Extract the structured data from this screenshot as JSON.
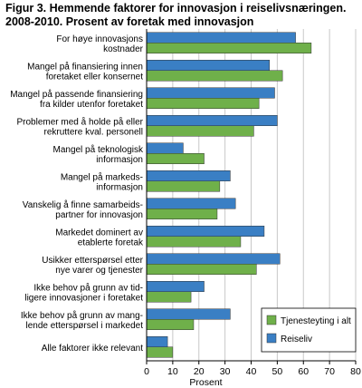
{
  "chart_data": {
    "type": "bar",
    "orientation": "horizontal",
    "title_lines": [
      "Figur 3. Hemmende faktorer for innovasjon i reiselivsnæringen.",
      "2008-2010. Prosent av foretak med innovasjon"
    ],
    "xlabel": "Prosent",
    "ylabel": "",
    "xlim": [
      0,
      80
    ],
    "xticks": [
      0,
      10,
      20,
      30,
      40,
      50,
      60,
      70,
      80
    ],
    "grid": true,
    "legend_position": "bottom-right",
    "categories": [
      [
        "For høye innovasjons",
        "kostnader"
      ],
      [
        "Mangel på finansiering innen",
        "foretaket eller konsernet"
      ],
      [
        "Mangel på passende finansiering",
        "fra kilder utenfor foretaket"
      ],
      [
        "Problemer med å holde på eller",
        "rekruttere kval. personell"
      ],
      [
        "Mangel på teknologisk",
        "informasjon"
      ],
      [
        "Mangel på markeds-",
        "informasjon"
      ],
      [
        "Vanskelig å finne samarbeids-",
        "partner for innovasjon"
      ],
      [
        "Markedet dominert av",
        "etablerte foretak"
      ],
      [
        "Usikker etterspørsel etter",
        "nye varer og tjenester"
      ],
      [
        "Ikke behov på grunn av tid-",
        "ligere innovasjoner i foretaket"
      ],
      [
        "Ikke behov på grunn av  mang-",
        "lende etterspørsel i markedet"
      ],
      [
        "Alle faktorer ikke relevant"
      ]
    ],
    "series": [
      {
        "name": "Reiseliv",
        "color": "#3a7fc4",
        "values": [
          57,
          47,
          49,
          50,
          14,
          32,
          34,
          45,
          51,
          22,
          32,
          8
        ]
      },
      {
        "name": "Tjenesteyting i alt",
        "color": "#6fb04a",
        "values": [
          63,
          52,
          43,
          41,
          22,
          28,
          27,
          36,
          42,
          17,
          18,
          10
        ]
      }
    ],
    "legend_order": [
      "Tjenesteyting i alt",
      "Reiseliv"
    ],
    "colors": {
      "grid": "#c8c8c8",
      "axis": "#000000",
      "bar_stroke": "#333333"
    }
  }
}
